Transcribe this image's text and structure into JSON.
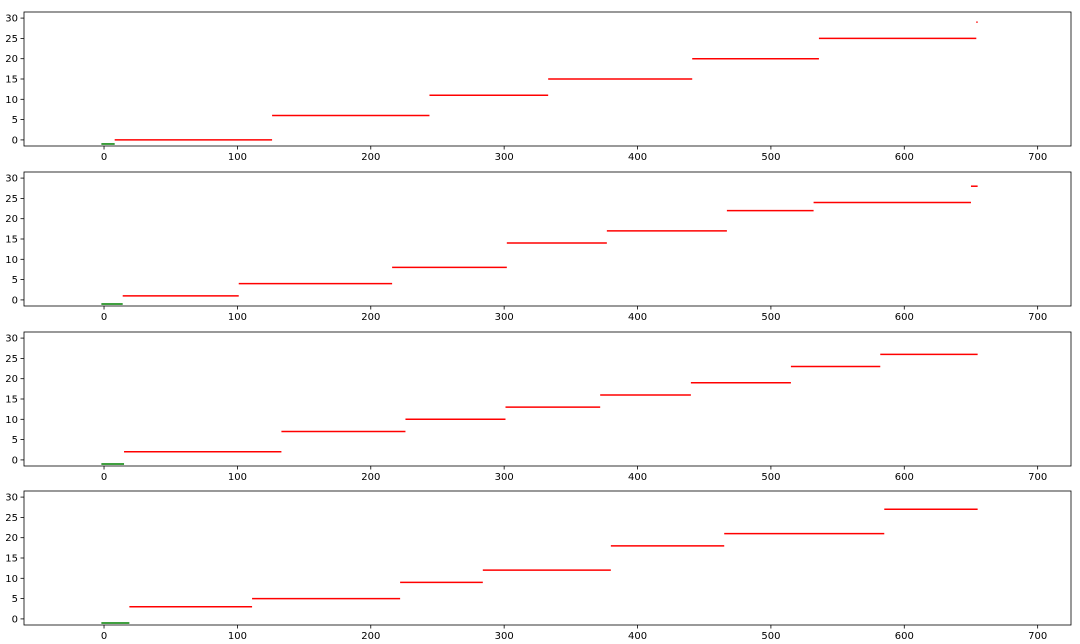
{
  "colors": {
    "background": "#ffffff",
    "axes": "#000000",
    "green_series": "#008000",
    "red_series": "#ff0000"
  },
  "chart_data": [
    {
      "type": "line",
      "subtype": "horizontal-segments",
      "xlim": [
        -60,
        725
      ],
      "ylim": [
        -1.5,
        31.5
      ],
      "xticks": [
        0,
        100,
        200,
        300,
        400,
        500,
        600,
        700
      ],
      "yticks": [
        0,
        5,
        10,
        15,
        20,
        25,
        30
      ],
      "grid": false,
      "segments": [
        {
          "y": -1,
          "x0": -2,
          "x1": 8,
          "color": "green"
        },
        {
          "y": 0,
          "x0": 8,
          "x1": 126,
          "color": "red"
        },
        {
          "y": 6,
          "x0": 126,
          "x1": 244,
          "color": "red"
        },
        {
          "y": 11,
          "x0": 244,
          "x1": 333,
          "color": "red"
        },
        {
          "y": 15,
          "x0": 333,
          "x1": 441,
          "color": "red"
        },
        {
          "y": 20,
          "x0": 441,
          "x1": 536,
          "color": "red"
        },
        {
          "y": 25,
          "x0": 536,
          "x1": 654,
          "color": "red"
        },
        {
          "y": 29,
          "x0": 654,
          "x1": 655,
          "color": "red"
        }
      ]
    },
    {
      "type": "line",
      "subtype": "horizontal-segments",
      "xlim": [
        -60,
        725
      ],
      "ylim": [
        -1.5,
        31.5
      ],
      "xticks": [
        0,
        100,
        200,
        300,
        400,
        500,
        600,
        700
      ],
      "yticks": [
        0,
        5,
        10,
        15,
        20,
        25,
        30
      ],
      "grid": false,
      "segments": [
        {
          "y": -1,
          "x0": -2,
          "x1": 14,
          "color": "green"
        },
        {
          "y": 1,
          "x0": 14,
          "x1": 101,
          "color": "red"
        },
        {
          "y": 4,
          "x0": 101,
          "x1": 216,
          "color": "red"
        },
        {
          "y": 8,
          "x0": 216,
          "x1": 302,
          "color": "red"
        },
        {
          "y": 14,
          "x0": 302,
          "x1": 377,
          "color": "red"
        },
        {
          "y": 17,
          "x0": 377,
          "x1": 467,
          "color": "red"
        },
        {
          "y": 22,
          "x0": 467,
          "x1": 532,
          "color": "red"
        },
        {
          "y": 24,
          "x0": 532,
          "x1": 650,
          "color": "red"
        },
        {
          "y": 28,
          "x0": 650,
          "x1": 655,
          "color": "red"
        }
      ]
    },
    {
      "type": "line",
      "subtype": "horizontal-segments",
      "xlim": [
        -60,
        725
      ],
      "ylim": [
        -1.5,
        31.5
      ],
      "xticks": [
        0,
        100,
        200,
        300,
        400,
        500,
        600,
        700
      ],
      "yticks": [
        0,
        5,
        10,
        15,
        20,
        25,
        30
      ],
      "grid": false,
      "segments": [
        {
          "y": -1,
          "x0": -2,
          "x1": 15,
          "color": "green"
        },
        {
          "y": 2,
          "x0": 15,
          "x1": 133,
          "color": "red"
        },
        {
          "y": 7,
          "x0": 133,
          "x1": 226,
          "color": "red"
        },
        {
          "y": 10,
          "x0": 226,
          "x1": 301,
          "color": "red"
        },
        {
          "y": 13,
          "x0": 301,
          "x1": 372,
          "color": "red"
        },
        {
          "y": 16,
          "x0": 372,
          "x1": 440,
          "color": "red"
        },
        {
          "y": 19,
          "x0": 440,
          "x1": 515,
          "color": "red"
        },
        {
          "y": 23,
          "x0": 515,
          "x1": 582,
          "color": "red"
        },
        {
          "y": 26,
          "x0": 582,
          "x1": 655,
          "color": "red"
        }
      ]
    },
    {
      "type": "line",
      "subtype": "horizontal-segments",
      "xlim": [
        -60,
        725
      ],
      "ylim": [
        -1.5,
        31.5
      ],
      "xticks": [
        0,
        100,
        200,
        300,
        400,
        500,
        600,
        700
      ],
      "yticks": [
        0,
        5,
        10,
        15,
        20,
        25,
        30
      ],
      "grid": false,
      "segments": [
        {
          "y": -1,
          "x0": -2,
          "x1": 19,
          "color": "green"
        },
        {
          "y": 3,
          "x0": 19,
          "x1": 111,
          "color": "red"
        },
        {
          "y": 5,
          "x0": 111,
          "x1": 222,
          "color": "red"
        },
        {
          "y": 9,
          "x0": 222,
          "x1": 284,
          "color": "red"
        },
        {
          "y": 12,
          "x0": 284,
          "x1": 380,
          "color": "red"
        },
        {
          "y": 18,
          "x0": 380,
          "x1": 465,
          "color": "red"
        },
        {
          "y": 21,
          "x0": 465,
          "x1": 585,
          "color": "red"
        },
        {
          "y": 27,
          "x0": 585,
          "x1": 655,
          "color": "red"
        }
      ]
    }
  ]
}
